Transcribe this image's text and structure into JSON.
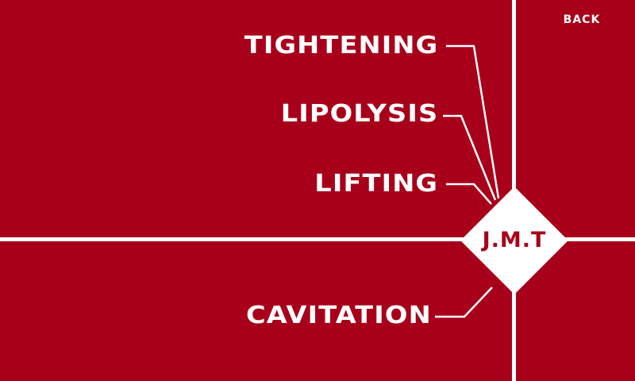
{
  "screen": {
    "background_color": "#a8001a",
    "foreground_color": "#ffffff"
  },
  "header": {
    "back_label": "BACK"
  },
  "logo": {
    "text": "J.M.T"
  },
  "menu": {
    "items": [
      {
        "id": "tightening",
        "label": "TIGHTENING"
      },
      {
        "id": "lipolysis",
        "label": "LIPOLYSIS"
      },
      {
        "id": "lifting",
        "label": "LIFTING"
      },
      {
        "id": "cavitation",
        "label": "CAVITATION"
      }
    ]
  }
}
